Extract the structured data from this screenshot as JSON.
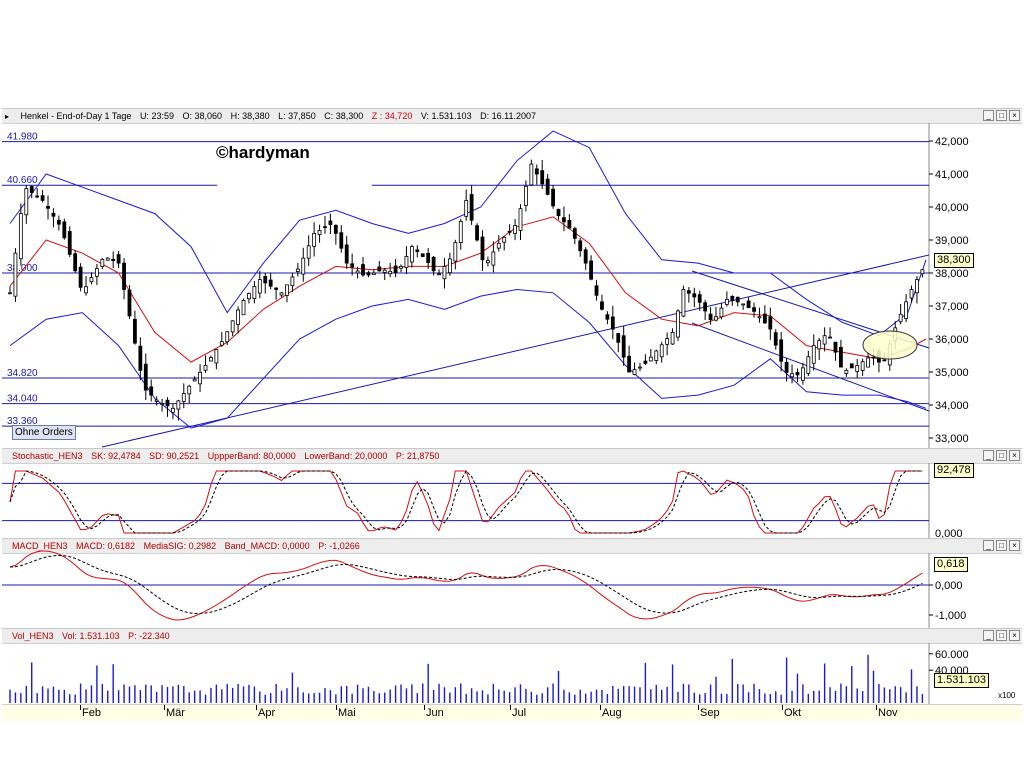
{
  "price_header": {
    "name": "Henkel - End-of-Day 1 Tage",
    "u_label": "U:",
    "u_value": "23:59",
    "o_label": "O:",
    "o_value": "38,060",
    "h_label": "H:",
    "h_value": "38,380",
    "l_label": "L:",
    "l_value": "37,850",
    "c_label": "C:",
    "c_value": "38,300",
    "z_label": "Z :",
    "z_value": "34,720",
    "v_label": "V:",
    "v_value": "1.531.103",
    "d_label": "D:",
    "d_value": "16.11.2007"
  },
  "stoch_header": {
    "name": "Stochastic_HEN3",
    "sk": "SK: 92,4784",
    "sd": "SD: 90,2521",
    "upper": "UppperBand: 80,0000",
    "lower": "LowerBand: 20,0000",
    "p": "P: 21,8750"
  },
  "macd_header": {
    "name": "MACD_HEN3",
    "macd": "MACD: 0,6182",
    "sig": "MediaSIG: 0,2982",
    "band": "Band_MACD: 0,0000",
    "p": "P: -1,0266"
  },
  "vol_header": {
    "name": "Vol_HEN3",
    "vol": "Vol: 1.531.103",
    "p": "P: -22.340"
  },
  "window_buttons": {
    "min": "_",
    "max": "□",
    "close": "×"
  },
  "copyright": "©hardyman",
  "ohne_orders": "Ohne Orders",
  "price_axis_ticks": [
    "42,000",
    "41,000",
    "40,000",
    "39,000",
    "38,000",
    "37,000",
    "36,000",
    "35,000",
    "34,000",
    "33,000"
  ],
  "price_levels": [
    "41.980",
    "40.660",
    "38.000",
    "34.820",
    "34.040",
    "33.360"
  ],
  "last_price": "38,300",
  "stoch_ticks": [
    "92,478",
    "0,000"
  ],
  "macd_ticks": [
    "0,618",
    "0,000",
    "-1,000"
  ],
  "vol_ticks": [
    "60.000",
    "40.000",
    "1.531.103"
  ],
  "vol_scale": "x100",
  "months": [
    "Feb",
    "Mär",
    "Apr",
    "Mai",
    "Jun",
    "Jul",
    "Aug",
    "Sep",
    "Okt",
    "Nov"
  ],
  "colors": {
    "candles": "#000000",
    "bollinger": "#1a1ad0",
    "ma": "#d01010",
    "level": "#1a1aa8",
    "macd": "#d01010",
    "signal": "#000000",
    "volume": "#1a1ad0",
    "ellipse": "#ffffcc"
  },
  "chart_data": {
    "type": "line",
    "series_note": "candlestick price series with Bollinger bands, moving average, Stochastic, MACD and volume",
    "yrange": [
      33,
      42
    ],
    "levels": [
      41.98,
      40.66,
      38.0,
      34.82,
      34.04,
      33.36
    ],
    "price_path": [
      [
        0,
        37.4
      ],
      [
        8,
        40.6
      ],
      [
        18,
        40.2
      ],
      [
        28,
        39.4
      ],
      [
        40,
        37.4
      ],
      [
        52,
        38.5
      ],
      [
        60,
        38.3
      ],
      [
        66,
        36.7
      ],
      [
        74,
        34.5
      ],
      [
        82,
        34.1
      ],
      [
        90,
        33.9
      ],
      [
        98,
        34.5
      ],
      [
        108,
        35.2
      ],
      [
        118,
        36.0
      ],
      [
        128,
        37.1
      ],
      [
        138,
        37.8
      ],
      [
        150,
        37.4
      ],
      [
        160,
        38.2
      ],
      [
        168,
        39.2
      ],
      [
        178,
        39.5
      ],
      [
        186,
        38.3
      ],
      [
        196,
        37.9
      ],
      [
        206,
        38.1
      ],
      [
        214,
        38.0
      ],
      [
        222,
        38.8
      ],
      [
        230,
        38.4
      ],
      [
        236,
        37.9
      ],
      [
        244,
        38.5
      ],
      [
        252,
        40.2
      ],
      [
        262,
        38.2
      ],
      [
        270,
        38.9
      ],
      [
        280,
        39.5
      ],
      [
        288,
        41.3
      ],
      [
        296,
        40.5
      ],
      [
        302,
        39.8
      ],
      [
        310,
        39.3
      ],
      [
        318,
        38.3
      ],
      [
        326,
        37.0
      ],
      [
        334,
        36.2
      ],
      [
        342,
        35.0
      ],
      [
        350,
        35.2
      ],
      [
        358,
        35.7
      ],
      [
        366,
        36.2
      ],
      [
        372,
        37.5
      ],
      [
        380,
        37.2
      ],
      [
        388,
        36.5
      ],
      [
        396,
        37.2
      ],
      [
        404,
        37.1
      ],
      [
        412,
        36.8
      ],
      [
        420,
        36.3
      ],
      [
        428,
        35.0
      ],
      [
        436,
        34.9
      ],
      [
        444,
        35.8
      ],
      [
        452,
        36.2
      ],
      [
        460,
        35.0
      ],
      [
        468,
        35.2
      ],
      [
        476,
        35.5
      ],
      [
        482,
        35.2
      ],
      [
        490,
        36.5
      ],
      [
        498,
        37.5
      ],
      [
        506,
        38.3
      ]
    ],
    "ma_path": [
      [
        0,
        37.6
      ],
      [
        20,
        39.0
      ],
      [
        40,
        38.6
      ],
      [
        60,
        38.0
      ],
      [
        80,
        36.2
      ],
      [
        100,
        35.3
      ],
      [
        120,
        35.9
      ],
      [
        140,
        36.9
      ],
      [
        160,
        37.6
      ],
      [
        180,
        38.2
      ],
      [
        200,
        38.1
      ],
      [
        220,
        38.2
      ],
      [
        240,
        38.2
      ],
      [
        260,
        38.6
      ],
      [
        280,
        39.4
      ],
      [
        300,
        39.7
      ],
      [
        320,
        38.9
      ],
      [
        340,
        37.4
      ],
      [
        360,
        36.6
      ],
      [
        380,
        36.4
      ],
      [
        400,
        36.8
      ],
      [
        420,
        36.7
      ],
      [
        440,
        35.8
      ],
      [
        460,
        35.6
      ],
      [
        480,
        35.4
      ],
      [
        496,
        35.7
      ],
      [
        506,
        36.0
      ]
    ],
    "bb_upper": [
      [
        0,
        39.5
      ],
      [
        20,
        41.0
      ],
      [
        40,
        40.6
      ],
      [
        60,
        40.2
      ],
      [
        80,
        39.8
      ],
      [
        100,
        38.8
      ],
      [
        120,
        36.8
      ],
      [
        140,
        38.3
      ],
      [
        160,
        39.6
      ],
      [
        180,
        39.9
      ],
      [
        200,
        39.5
      ],
      [
        220,
        39.2
      ],
      [
        240,
        39.5
      ],
      [
        260,
        40.0
      ],
      [
        280,
        41.4
      ],
      [
        300,
        42.3
      ],
      [
        320,
        41.8
      ],
      [
        340,
        39.8
      ],
      [
        360,
        38.4
      ],
      [
        380,
        38.3
      ],
      [
        400,
        38.0
      ],
      [
        420,
        38.0
      ],
      [
        440,
        37.2
      ],
      [
        460,
        36.5
      ],
      [
        480,
        36.1
      ],
      [
        496,
        36.8
      ],
      [
        506,
        38.4
      ]
    ],
    "bb_lower": [
      [
        0,
        35.8
      ],
      [
        20,
        36.6
      ],
      [
        40,
        36.8
      ],
      [
        60,
        35.8
      ],
      [
        80,
        34.2
      ],
      [
        100,
        33.3
      ],
      [
        120,
        33.6
      ],
      [
        140,
        34.8
      ],
      [
        160,
        36.0
      ],
      [
        180,
        36.6
      ],
      [
        200,
        37.0
      ],
      [
        220,
        37.2
      ],
      [
        240,
        36.9
      ],
      [
        260,
        37.3
      ],
      [
        280,
        37.5
      ],
      [
        300,
        37.4
      ],
      [
        320,
        36.5
      ],
      [
        340,
        35.2
      ],
      [
        360,
        34.2
      ],
      [
        380,
        34.3
      ],
      [
        400,
        34.6
      ],
      [
        420,
        35.4
      ],
      [
        440,
        34.4
      ],
      [
        460,
        34.3
      ],
      [
        480,
        34.3
      ],
      [
        496,
        34.1
      ],
      [
        506,
        33.9
      ]
    ]
  }
}
